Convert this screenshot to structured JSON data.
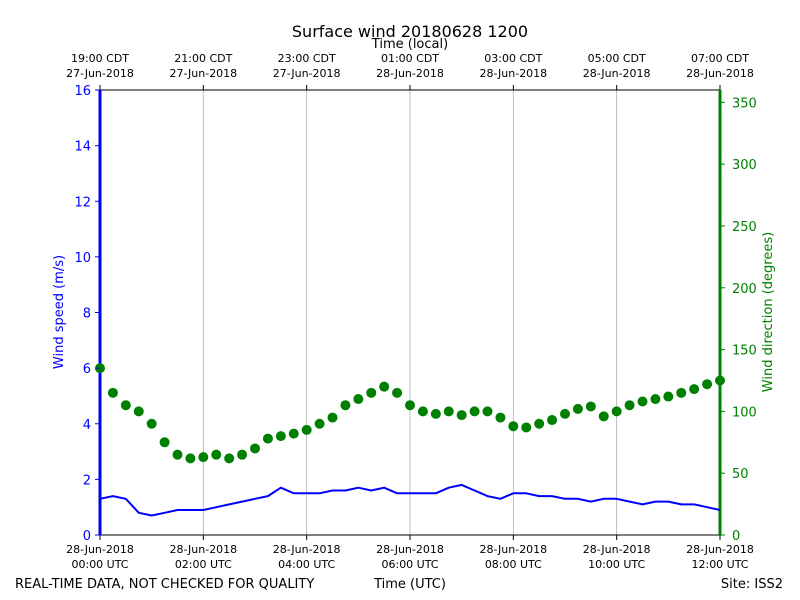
{
  "chart_data": {
    "type": "line+scatter",
    "title": "Surface wind 20180628 1200",
    "top_xlabel": "Time (local)",
    "xlabel": "Time (UTC)",
    "ylabel_left": "Wind speed (m/s)",
    "ylabel_right": "Wind direction (degrees)",
    "ylim_left": [
      0,
      16
    ],
    "ylim_right": [
      0,
      360
    ],
    "xlim_hours": [
      0,
      12
    ],
    "grid": "vertical",
    "footer_left": "REAL-TIME DATA, NOT CHECKED FOR QUALITY",
    "footer_right": "Site: ISS2",
    "bottom_ticks": [
      {
        "hour": 0,
        "line1": "28-Jun-2018",
        "line2": "00:00 UTC"
      },
      {
        "hour": 2,
        "line1": "28-Jun-2018",
        "line2": "02:00 UTC"
      },
      {
        "hour": 4,
        "line1": "28-Jun-2018",
        "line2": "04:00 UTC"
      },
      {
        "hour": 6,
        "line1": "28-Jun-2018",
        "line2": "06:00 UTC"
      },
      {
        "hour": 8,
        "line1": "28-Jun-2018",
        "line2": "08:00 UTC"
      },
      {
        "hour": 10,
        "line1": "28-Jun-2018",
        "line2": "10:00 UTC"
      },
      {
        "hour": 12,
        "line1": "28-Jun-2018",
        "line2": "12:00 UTC"
      }
    ],
    "top_ticks": [
      {
        "hour": 0,
        "line1": "19:00 CDT",
        "line2": "27-Jun-2018"
      },
      {
        "hour": 2,
        "line1": "21:00 CDT",
        "line2": "27-Jun-2018"
      },
      {
        "hour": 4,
        "line1": "23:00 CDT",
        "line2": "27-Jun-2018"
      },
      {
        "hour": 6,
        "line1": "01:00 CDT",
        "line2": "28-Jun-2018"
      },
      {
        "hour": 8,
        "line1": "03:00 CDT",
        "line2": "28-Jun-2018"
      },
      {
        "hour": 10,
        "line1": "05:00 CDT",
        "line2": "28-Jun-2018"
      },
      {
        "hour": 12,
        "line1": "07:00 CDT",
        "line2": "28-Jun-2018"
      }
    ],
    "yticks_left": [
      0,
      2,
      4,
      6,
      8,
      10,
      12,
      14,
      16
    ],
    "yticks_right": [
      0,
      50,
      100,
      150,
      200,
      250,
      300,
      350
    ],
    "series": [
      {
        "name": "Wind speed",
        "axis": "left",
        "style": "line",
        "color": "#0000ff",
        "x_hours": [
          0,
          0.25,
          0.5,
          0.75,
          1,
          1.25,
          1.5,
          1.75,
          2,
          2.25,
          2.5,
          2.75,
          3,
          3.25,
          3.5,
          3.75,
          4,
          4.25,
          4.5,
          4.75,
          5,
          5.25,
          5.5,
          5.75,
          6,
          6.25,
          6.5,
          6.75,
          7,
          7.25,
          7.5,
          7.75,
          8,
          8.25,
          8.5,
          8.75,
          9,
          9.25,
          9.5,
          9.75,
          10,
          10.25,
          10.5,
          10.75,
          11,
          11.25,
          11.5,
          11.75,
          12
        ],
        "values": [
          1.3,
          1.4,
          1.3,
          0.8,
          0.7,
          0.8,
          0.9,
          0.9,
          0.9,
          1.0,
          1.1,
          1.2,
          1.3,
          1.4,
          1.7,
          1.5,
          1.5,
          1.5,
          1.6,
          1.6,
          1.7,
          1.6,
          1.7,
          1.5,
          1.5,
          1.5,
          1.5,
          1.7,
          1.8,
          1.6,
          1.4,
          1.3,
          1.5,
          1.5,
          1.4,
          1.4,
          1.3,
          1.3,
          1.2,
          1.3,
          1.3,
          1.2,
          1.1,
          1.2,
          1.2,
          1.1,
          1.1,
          1.0,
          0.9
        ]
      },
      {
        "name": "Wind direction",
        "axis": "right",
        "style": "markers",
        "color": "#008000",
        "x_hours": [
          0,
          0.25,
          0.5,
          0.75,
          1,
          1.25,
          1.5,
          1.75,
          2,
          2.25,
          2.5,
          2.75,
          3,
          3.25,
          3.5,
          3.75,
          4,
          4.25,
          4.5,
          4.75,
          5,
          5.25,
          5.5,
          5.75,
          6,
          6.25,
          6.5,
          6.75,
          7,
          7.25,
          7.5,
          7.75,
          8,
          8.25,
          8.5,
          8.75,
          9,
          9.25,
          9.5,
          9.75,
          10,
          10.25,
          10.5,
          10.75,
          11,
          11.25,
          11.5,
          11.75,
          12
        ],
        "values": [
          135,
          115,
          105,
          100,
          90,
          75,
          65,
          62,
          63,
          65,
          62,
          65,
          70,
          78,
          80,
          82,
          85,
          90,
          95,
          105,
          110,
          115,
          120,
          115,
          105,
          100,
          98,
          100,
          97,
          100,
          100,
          95,
          88,
          87,
          90,
          93,
          98,
          102,
          104,
          96,
          100,
          105,
          108,
          110,
          112,
          115,
          118,
          122,
          125
        ]
      }
    ]
  }
}
